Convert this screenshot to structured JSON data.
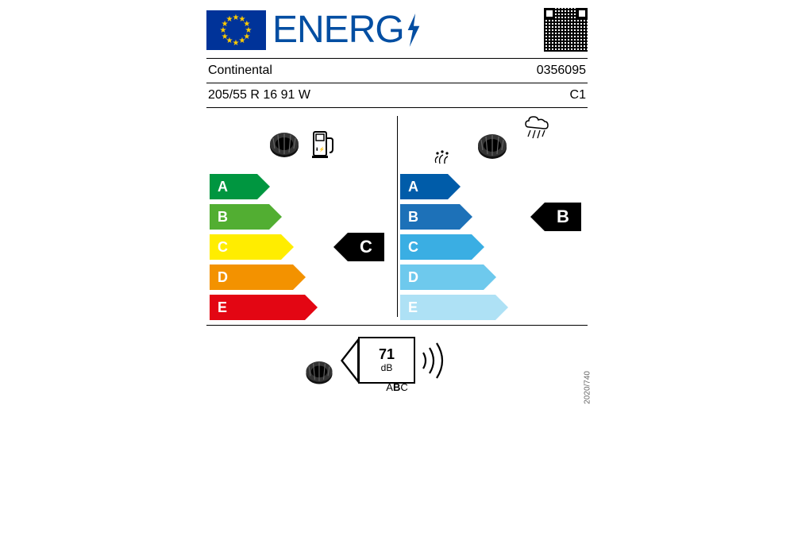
{
  "header": {
    "title": "ENERG"
  },
  "supplier": {
    "name": "Continental",
    "article": "0356095"
  },
  "tire": {
    "size": "205/55 R  16 91 W",
    "class": "C1"
  },
  "fuel_efficiency": {
    "classes": [
      "A",
      "B",
      "C",
      "D",
      "E"
    ],
    "colors": [
      "#009640",
      "#52ae32",
      "#ffed00",
      "#f39200",
      "#e30613"
    ],
    "widths": [
      60,
      75,
      90,
      105,
      120
    ],
    "rating": "C",
    "rating_index": 2
  },
  "wet_grip": {
    "classes": [
      "A",
      "B",
      "C",
      "D",
      "E"
    ],
    "colors": [
      "#005ca9",
      "#1d71b8",
      "#3aaee3",
      "#6ec9ed",
      "#aee1f5"
    ],
    "widths": [
      60,
      75,
      90,
      105,
      120
    ],
    "rating": "B",
    "rating_index": 1
  },
  "noise": {
    "value": "71",
    "unit": "dB",
    "class_label_html": "A<b>B</b>C"
  },
  "regulation": "2020/740",
  "layout": {
    "arrow_height": 32,
    "marker_right_fuel": 12,
    "marker_right_wet": 4
  }
}
